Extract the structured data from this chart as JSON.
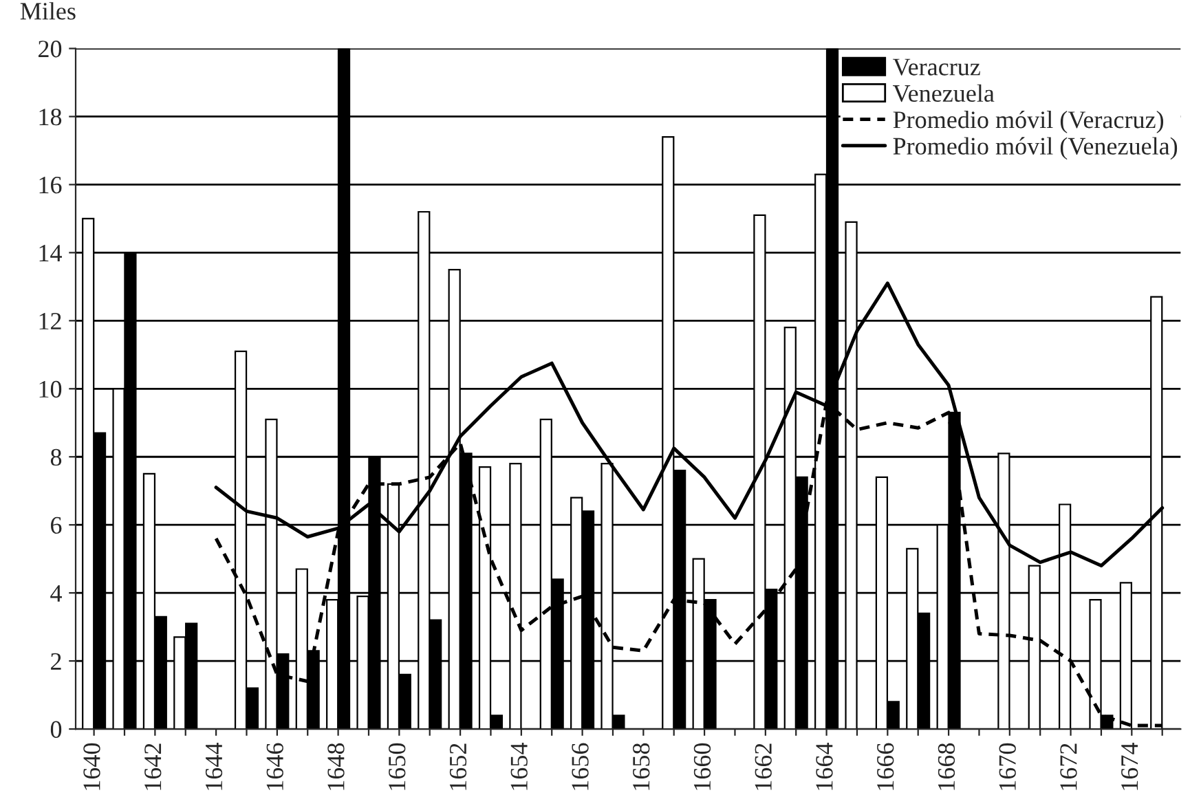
{
  "chart_data": {
    "type": "bar",
    "ylabel": "Miles",
    "categories": [
      "1640",
      null,
      "1642",
      null,
      "1644",
      null,
      "1646",
      null,
      "1648",
      null,
      "1650",
      null,
      "1652",
      null,
      "1654",
      null,
      "1656",
      null,
      "1658",
      null,
      "1660",
      null,
      "1662",
      null,
      "1664",
      null,
      "1666",
      null,
      "1668",
      null,
      "1670",
      null,
      "1672",
      null,
      "1674",
      null
    ],
    "series": [
      {
        "name": "Veracruz",
        "color": "#000000",
        "values": [
          8.7,
          14.0,
          3.3,
          3.1,
          null,
          1.2,
          2.2,
          2.3,
          20,
          8.0,
          1.6,
          3.2,
          8.1,
          0.4,
          null,
          4.4,
          6.4,
          0.4,
          null,
          7.6,
          3.8,
          null,
          4.1,
          7.4,
          20,
          null,
          0.8,
          3.4,
          9.3,
          null,
          null,
          null,
          null,
          0.4,
          null,
          null
        ]
      },
      {
        "name": "Venezuela",
        "color": "#ffffff",
        "values": [
          15.0,
          10.0,
          7.5,
          2.7,
          null,
          11.1,
          9.1,
          4.7,
          3.8,
          3.9,
          7.2,
          15.2,
          13.5,
          7.7,
          7.8,
          9.1,
          6.8,
          7.8,
          null,
          17.4,
          5.0,
          null,
          15.1,
          11.8,
          16.3,
          14.9,
          7.4,
          5.3,
          6.0,
          null,
          8.1,
          4.8,
          6.6,
          3.8,
          4.3,
          12.7
        ]
      },
      {
        "name": "Promedio móvil (Veracruz)",
        "type": "line",
        "line_style": "dashed",
        "color": "#000000",
        "values": [
          null,
          null,
          null,
          null,
          5.6,
          3.9,
          1.6,
          1.4,
          5.8,
          7.2,
          7.2,
          7.4,
          8.4,
          5.0,
          2.9,
          3.6,
          3.9,
          2.4,
          2.3,
          3.8,
          3.7,
          2.5,
          3.5,
          4.7,
          9.6,
          8.8,
          9.0,
          8.85,
          9.3,
          2.8,
          2.75,
          2.6,
          2.0,
          0.4,
          0.1,
          0.1
        ]
      },
      {
        "name": "Promedio móvil (Venezuela)",
        "type": "line",
        "line_style": "solid",
        "color": "#000000",
        "values": [
          null,
          null,
          null,
          null,
          7.1,
          6.4,
          6.2,
          5.65,
          5.9,
          6.6,
          5.8,
          7.0,
          8.6,
          9.5,
          10.35,
          10.75,
          9.0,
          7.7,
          6.45,
          8.25,
          7.4,
          6.2,
          7.9,
          9.9,
          9.5,
          11.7,
          13.1,
          11.3,
          10.1,
          6.8,
          5.4,
          4.9,
          5.2,
          4.8,
          5.6,
          6.5
        ]
      }
    ],
    "ylim": [
      0,
      20
    ],
    "yticks": [
      0,
      2,
      4,
      6,
      8,
      10,
      12,
      14,
      16,
      18,
      20
    ],
    "grid": "y",
    "legend": "top right"
  }
}
